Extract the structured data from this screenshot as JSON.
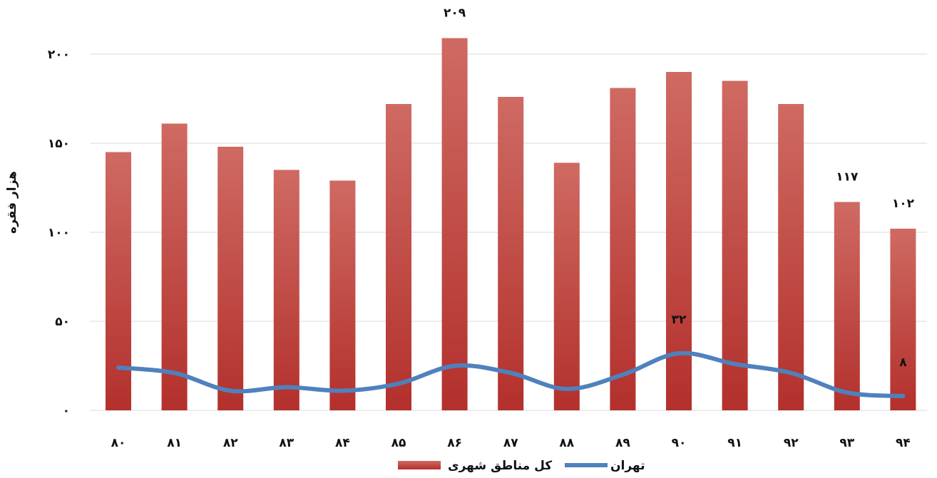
{
  "chart_data": {
    "type": "bar",
    "categories": [
      "۸۰",
      "۸۱",
      "۸۲",
      "۸۳",
      "۸۴",
      "۸۵",
      "۸۶",
      "۸۷",
      "۸۸",
      "۸۹",
      "۹۰",
      "۹۱",
      "۹۲",
      "۹۳",
      "۹۴"
    ],
    "series": [
      {
        "name": "کل مناطق شهری",
        "type": "bar",
        "color": "#c0403b",
        "values": [
          145,
          161,
          148,
          135,
          129,
          172,
          209,
          176,
          139,
          181,
          190,
          185,
          172,
          117,
          102
        ]
      },
      {
        "name": "تهران",
        "type": "line",
        "color": "#4f81bd",
        "values": [
          24,
          21,
          11,
          13,
          11,
          15,
          25,
          21,
          12,
          20,
          32,
          26,
          21,
          10,
          8
        ]
      }
    ],
    "bar_value_labels": [
      {
        "index": 6,
        "text": "۲۰۹"
      },
      {
        "index": 13,
        "text": "۱۱۷"
      },
      {
        "index": 14,
        "text": "۱۰۲"
      }
    ],
    "line_value_labels": [
      {
        "index": 10,
        "text": "۳۲"
      },
      {
        "index": 14,
        "text": "۸"
      }
    ],
    "ylabel": "هزار فقره",
    "xlabel": "",
    "ylim": [
      0,
      200
    ],
    "yticks": [
      {
        "value": 0,
        "label": "۰"
      },
      {
        "value": 50,
        "label": "۵۰"
      },
      {
        "value": 100,
        "label": "۱۰۰"
      },
      {
        "value": 150,
        "label": "۱۵۰"
      },
      {
        "value": 200,
        "label": "۲۰۰"
      }
    ],
    "grid": true,
    "legend_position": "bottom"
  }
}
